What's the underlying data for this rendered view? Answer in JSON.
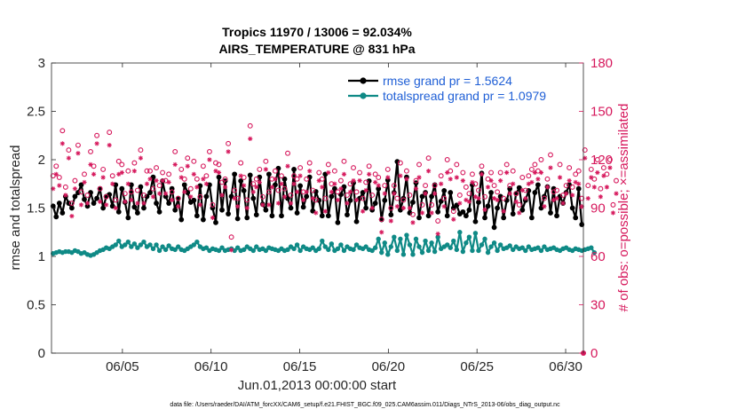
{
  "chart_data": {
    "type": "line",
    "title": [
      "Tropics 11970 / 13006 = 92.034%",
      "AIRS_TEMPERATURE @ 831 hPa"
    ],
    "xlabel": "Jun.01,2013 00:00:00 start",
    "ylabel": "rmse and totalspread",
    "y2label": "# of obs: o=possible; ×=assimilated",
    "xticks": [
      "06/05",
      "06/10",
      "06/15",
      "06/20",
      "06/25",
      "06/30"
    ],
    "xtick_days": [
      5,
      10,
      15,
      20,
      25,
      30
    ],
    "xlim": [
      1,
      31
    ],
    "ylim": [
      0,
      3
    ],
    "yticks": [
      "0",
      "0.5",
      "1",
      "1.5",
      "2",
      "2.5",
      "3"
    ],
    "y2lim": [
      0,
      180
    ],
    "y2ticks": [
      "0",
      "30",
      "60",
      "90",
      "120",
      "150",
      "180"
    ],
    "legend": [
      "rmse grand pr = 1.5624",
      "totalspread grand pr = 1.0979"
    ],
    "footnote": "data file: /Users/raeder/DAI/ATM_forcXX/CAM6_setup/f.e21.FHIST_BGC.f09_025.CAM6assim.011/Diags_NTrS_2013-06/obs_diag_output.nc",
    "colors": {
      "rmse": "#000000",
      "spread": "#0f8a86",
      "obs": "#d6185c",
      "legend_text": "#1f5fd6"
    },
    "series": [
      {
        "name": "rmse",
        "values": [
          1.52,
          1.41,
          1.55,
          1.45,
          1.62,
          1.55,
          1.5,
          1.62,
          1.66,
          1.74,
          1.59,
          1.52,
          1.66,
          1.55,
          1.6,
          1.7,
          1.5,
          1.62,
          1.64,
          1.52,
          1.74,
          1.46,
          1.7,
          1.56,
          1.4,
          1.74,
          1.51,
          1.45,
          1.72,
          1.5,
          1.62,
          1.66,
          1.82,
          1.55,
          1.46,
          1.78,
          1.62,
          1.55,
          1.7,
          1.48,
          1.6,
          1.38,
          1.74,
          1.66,
          1.56,
          1.58,
          1.42,
          1.73,
          1.38,
          1.62,
          1.74,
          1.5,
          1.35,
          1.82,
          1.48,
          1.78,
          1.44,
          1.62,
          1.85,
          1.39,
          1.78,
          1.68,
          1.4,
          1.84,
          1.6,
          1.43,
          1.82,
          1.54,
          1.48,
          1.85,
          1.42,
          1.74,
          1.91,
          1.42,
          1.8,
          1.6,
          1.5,
          1.9,
          1.45,
          1.73,
          1.51,
          1.62,
          1.82,
          1.47,
          1.67,
          1.58,
          1.42,
          1.85,
          1.42,
          1.62,
          1.7,
          1.35,
          1.64,
          1.72,
          1.43,
          1.58,
          1.76,
          1.36,
          1.6,
          1.66,
          1.5,
          1.78,
          1.48,
          1.55,
          1.7,
          1.38,
          1.58,
          1.79,
          1.43,
          1.66,
          1.98,
          1.48,
          1.6,
          1.82,
          1.45,
          1.56,
          1.76,
          1.4,
          1.62,
          1.66,
          1.42,
          1.62,
          1.74,
          1.46,
          1.57,
          1.68,
          1.42,
          1.66,
          1.5,
          1.53,
          1.44,
          1.46,
          1.42,
          1.48,
          1.74,
          1.36,
          1.56,
          1.86,
          1.4,
          1.52,
          1.66,
          1.3,
          1.5,
          1.62,
          1.4,
          1.58,
          1.7,
          1.44,
          1.65,
          1.71,
          1.48,
          1.58,
          1.68,
          1.4,
          1.66,
          1.74,
          1.5,
          1.62,
          1.72,
          1.45,
          1.7,
          1.42,
          1.62,
          1.55,
          1.66,
          1.74,
          1.5,
          1.4,
          1.7,
          1.33
        ]
      },
      {
        "name": "totalspread",
        "values": [
          1.03,
          1.04,
          1.05,
          1.04,
          1.05,
          1.05,
          1.04,
          1.06,
          1.05,
          1.03,
          1.04,
          1.02,
          1.01,
          1.02,
          1.04,
          1.06,
          1.07,
          1.09,
          1.08,
          1.1,
          1.12,
          1.16,
          1.1,
          1.12,
          1.15,
          1.1,
          1.13,
          1.09,
          1.12,
          1.15,
          1.1,
          1.12,
          1.08,
          1.12,
          1.06,
          1.1,
          1.07,
          1.11,
          1.08,
          1.07,
          1.1,
          1.07,
          1.06,
          1.08,
          1.1,
          1.12,
          1.15,
          1.1,
          1.08,
          1.09,
          1.06,
          1.08,
          1.07,
          1.06,
          1.09,
          1.06,
          1.07,
          1.08,
          1.06,
          1.09,
          1.06,
          1.07,
          1.1,
          1.08,
          1.06,
          1.1,
          1.07,
          1.08,
          1.06,
          1.09,
          1.08,
          1.07,
          1.06,
          1.08,
          1.06,
          1.07,
          1.1,
          1.08,
          1.12,
          1.06,
          1.1,
          1.08,
          1.07,
          1.09,
          1.06,
          1.08,
          1.16,
          1.1,
          1.07,
          1.13,
          1.06,
          1.08,
          1.12,
          1.06,
          1.1,
          1.08,
          1.07,
          1.12,
          1.09,
          1.08,
          1.1,
          1.07,
          1.06,
          1.09,
          1.18,
          1.04,
          1.14,
          1.02,
          1.1,
          1.2,
          1.06,
          1.18,
          1.02,
          1.22,
          1.12,
          1.02,
          1.18,
          1.1,
          1.04,
          1.16,
          1.06,
          1.14,
          1.05,
          1.2,
          1.08,
          1.1,
          1.12,
          1.09,
          1.16,
          1.07,
          1.25,
          1.05,
          1.14,
          1.2,
          1.06,
          1.24,
          1.06,
          1.12,
          1.18,
          1.04,
          1.1,
          1.14,
          1.06,
          1.12,
          1.08,
          1.09,
          1.11,
          1.07,
          1.1,
          1.08,
          1.09,
          1.06,
          1.1,
          1.07,
          1.08,
          1.09,
          1.06,
          1.1,
          1.07,
          1.08,
          1.09,
          1.07,
          1.06,
          1.08,
          1.09,
          1.07,
          1.06,
          1.08,
          1.07,
          1.06,
          1.07,
          1.08,
          1.09,
          1.04
        ]
      },
      {
        "name": "obs_possible",
        "values": [
          110,
          116,
          109,
          138,
          103,
          126,
          93,
          107,
          129,
          100,
          111,
          98,
          125,
          116,
          135,
          102,
          114,
          97,
          137,
          110,
          95,
          119,
          117,
          99,
          113,
          100,
          118,
          101,
          126,
          98,
          113,
          113,
          102,
          115,
          104,
          112,
          107,
          111,
          100,
          125,
          96,
          114,
          108,
          121,
          102,
          119,
          108,
          97,
          116,
          110,
          125,
          92,
          118,
          117,
          106,
          108,
          130,
          72,
          101,
          96,
          118,
          109,
          95,
          141,
          105,
          108,
          114,
          97,
          119,
          100,
          108,
          113,
          101,
          110,
          102,
          124,
          98,
          110,
          108,
          115,
          100,
          108,
          118,
          101,
          95,
          112,
          108,
          96,
          117,
          105,
          113,
          100,
          107,
          119,
          98,
          105,
          115,
          100,
          112,
          96,
          106,
          116,
          98,
          111,
          109,
          83,
          104,
          114,
          90,
          104,
          96,
          118,
          95,
          113,
          98,
          86,
          107,
          117,
          92,
          104,
          121,
          92,
          104,
          82,
          110,
          96,
          120,
          113,
          88,
          117,
          98,
          112,
          103,
          99,
          111,
          105,
          101,
          116,
          97,
          108,
          112,
          104,
          100,
          112,
          96,
          117,
          104,
          113,
          99,
          92,
          109,
          101,
          110,
          114,
          117,
          113,
          120,
          96,
          108,
          123,
          100,
          101,
          117,
          98,
          104,
          115,
          103,
          111,
          113,
          96,
          126,
          104,
          114,
          108,
          120,
          102,
          115,
          111,
          120,
          92,
          107
        ]
      }
    ]
  }
}
